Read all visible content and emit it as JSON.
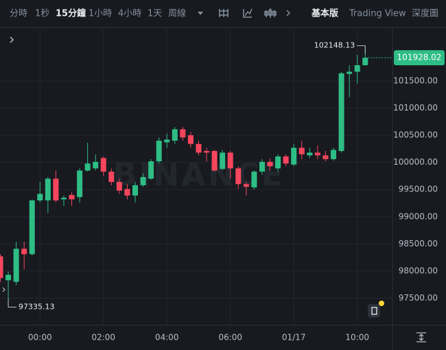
{
  "toolbar": {
    "intervals": [
      "分時",
      "1秒",
      "15分鐘",
      "1小時",
      "4小時",
      "1天",
      "周線"
    ],
    "views": [
      "基本版",
      "Trading View",
      "深度圖"
    ]
  },
  "chart_data": {
    "type": "candlestick",
    "watermark": "BINANCE",
    "categories": [
      null,
      null,
      null,
      null,
      null,
      "00:00",
      null,
      null,
      null,
      null,
      null,
      null,
      null,
      "02:00",
      null,
      null,
      null,
      null,
      null,
      null,
      null,
      "04:00",
      null,
      null,
      null,
      null,
      null,
      null,
      null,
      "06:00",
      null,
      null,
      null,
      null,
      null,
      null,
      null,
      "01/17",
      null,
      null,
      null,
      null,
      null,
      null,
      null,
      "10:00",
      null
    ],
    "open": [
      98270,
      97830,
      97800,
      98410,
      98310,
      99300,
      99300,
      99700,
      99320,
      99400,
      99360,
      99850,
      99890,
      100080,
      99830,
      99640,
      99510,
      99390,
      99580,
      99700,
      100020,
      100370,
      100400,
      100610,
      100500,
      100340,
      100210,
      100210,
      99880,
      100180,
      99890,
      99600,
      99540,
      99830,
      100010,
      99890,
      100110,
      99960,
      100270,
      100130,
      100180,
      100130,
      100060,
      100210,
      101630,
      101670,
      101790
    ],
    "high": [
      98310,
      97990,
      98540,
      98540,
      99320,
      99640,
      99730,
      99850,
      99390,
      99450,
      99890,
      100360,
      100150,
      100110,
      99890,
      99700,
      99600,
      99640,
      99800,
      100060,
      100460,
      100530,
      100650,
      100650,
      100560,
      100400,
      100270,
      100230,
      100230,
      100210,
      99930,
      99640,
      99850,
      100060,
      100080,
      100150,
      100150,
      100340,
      100400,
      100270,
      100310,
      100210,
      100270,
      101670,
      101790,
      101980,
      102148.13
    ],
    "low": [
      97800,
      97335.13,
      97740,
      98030,
      98290,
      99260,
      99070,
      99260,
      99200,
      99200,
      99260,
      99830,
      99850,
      99750,
      99580,
      99420,
      99320,
      99260,
      99550,
      99680,
      99980,
      100270,
      100340,
      100400,
      100270,
      100130,
      100020,
      99830,
      99850,
      99700,
      99510,
      99390,
      99500,
      99770,
      99850,
      99830,
      99930,
      99930,
      100060,
      100080,
      100060,
      100020,
      100030,
      100180,
      101200,
      101450,
      101780
    ],
    "close": [
      97870,
      97930,
      98410,
      98310,
      99300,
      99420,
      99700,
      99300,
      99350,
      99320,
      99850,
      99980,
      100010,
      99830,
      99640,
      99480,
      99390,
      99580,
      99730,
      100020,
      100400,
      100420,
      100610,
      100460,
      100340,
      100180,
      100180,
      99850,
      100180,
      99890,
      99600,
      99550,
      99830,
      100010,
      99930,
      100110,
      99980,
      100270,
      100150,
      100180,
      100130,
      100060,
      100230,
      101640,
      101670,
      101790,
      101928.02
    ],
    "up_color": "#2ebd85",
    "down_color": "#f6465d",
    "ylim": [
      97000,
      102460
    ],
    "yticks": [
      {
        "value": 97500,
        "label": "97500.00"
      },
      {
        "value": 98000,
        "label": "98000.00"
      },
      {
        "value": 98500,
        "label": "98500.00"
      },
      {
        "value": 99000,
        "label": "99000.00"
      },
      {
        "value": 99500,
        "label": "99500.00"
      },
      {
        "value": 100000,
        "label": "100000.00"
      },
      {
        "value": 100500,
        "label": "100500.00"
      },
      {
        "value": 101000,
        "label": "101000.00"
      },
      {
        "value": 101500,
        "label": "101500.00"
      }
    ],
    "grid": true
  }
}
